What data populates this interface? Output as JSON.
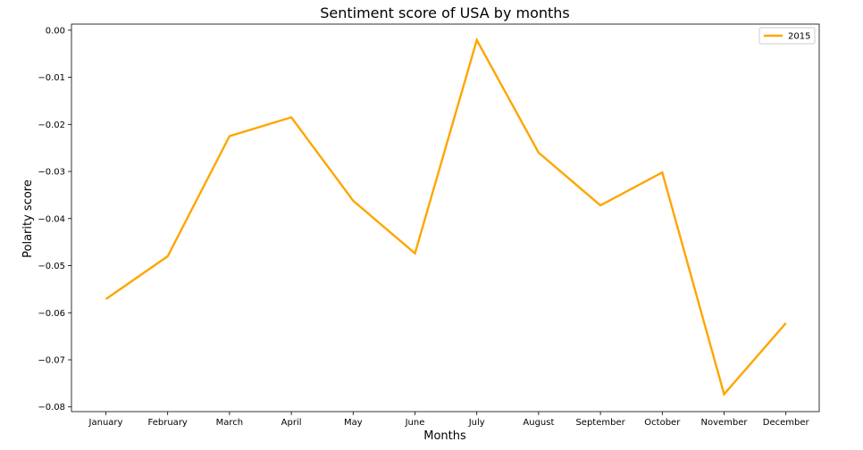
{
  "chart_data": {
    "type": "line",
    "title": "Sentiment score of USA by months",
    "xlabel": "Months",
    "ylabel": "Polarity score",
    "categories": [
      "January",
      "February",
      "March",
      "April",
      "May",
      "June",
      "July",
      "August",
      "September",
      "October",
      "November",
      "December"
    ],
    "series": [
      {
        "name": "2015",
        "color": "#ffa500",
        "values": [
          -0.0571,
          -0.048,
          -0.0225,
          -0.0185,
          -0.0362,
          -0.0474,
          -0.0021,
          -0.026,
          -0.0372,
          -0.0302,
          -0.0773,
          -0.0622
        ]
      }
    ],
    "ylim": [
      -0.081,
      0.0013
    ],
    "yticks": [
      0.0,
      -0.01,
      -0.02,
      -0.03,
      -0.04,
      -0.05,
      -0.06,
      -0.07,
      -0.08
    ],
    "ytick_labels": [
      "0.00",
      "−0.01",
      "−0.02",
      "−0.03",
      "−0.04",
      "−0.05",
      "−0.06",
      "−0.07",
      "−0.08"
    ],
    "grid": false,
    "legend": "top-right"
  }
}
